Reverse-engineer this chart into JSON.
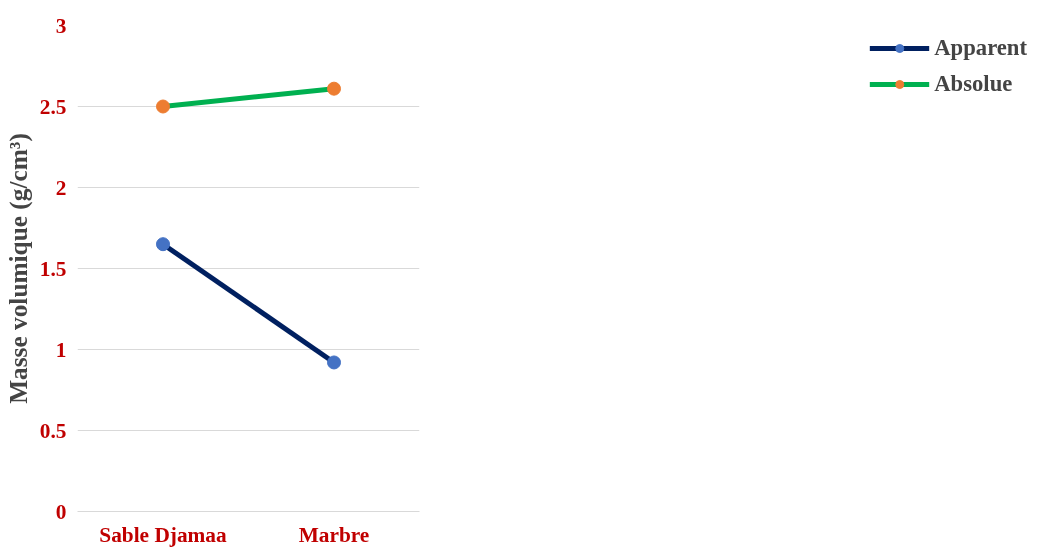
{
  "chart_data": {
    "type": "line",
    "ylabel": "Masse volumique (g/cm³)",
    "categories": [
      "Sable Djamaa",
      "Marbre"
    ],
    "series": [
      {
        "name": "Apparent",
        "color": "#002060",
        "colors": [
          "#4472c4",
          "#4472c4"
        ],
        "values": [
          1.65,
          0.92
        ]
      },
      {
        "name": "Absolue",
        "color": "#00b050",
        "colors": [
          "#ed7d31",
          "#ed7d31"
        ],
        "values": [
          2.5,
          2.61
        ]
      }
    ],
    "ylim": [
      0,
      3
    ],
    "yticks": [
      0,
      0.5,
      1,
      1.5,
      2,
      2.5,
      3
    ],
    "grid": "y",
    "legend": "right",
    "marker": "circle",
    "line_style": "solid"
  }
}
